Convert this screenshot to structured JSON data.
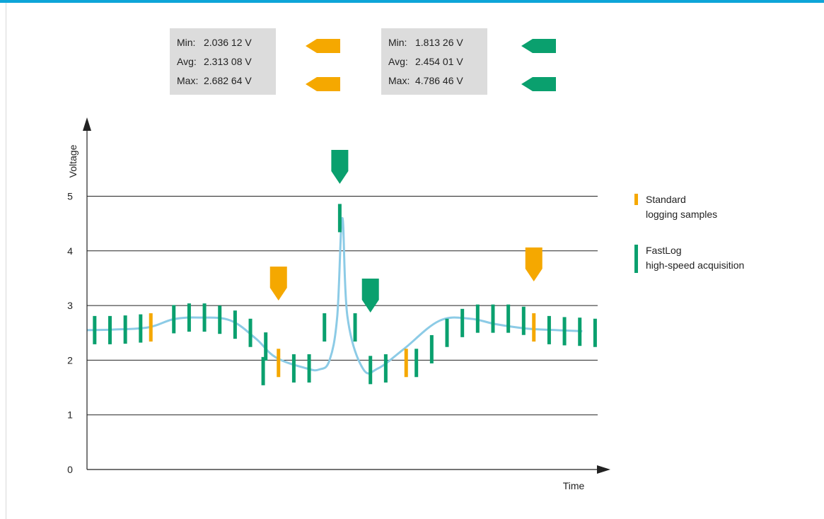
{
  "colors": {
    "standard": "#f5a800",
    "fastlog": "#0aa06e",
    "curve": "#8ccbe6",
    "top_bar": "#0ea5d8",
    "stat_bg": "#dcdcdc"
  },
  "stats": {
    "standard": {
      "min_label": "Min:",
      "min": "2.036 12 V",
      "avg_label": "Avg:",
      "avg": "2.313 08 V",
      "max_label": "Max:",
      "max": "2.682 64 V"
    },
    "fastlog": {
      "min_label": "Min:",
      "min": "1.813 26 V",
      "avg_label": "Avg:",
      "avg": "2.454 01 V",
      "max_label": "Max:",
      "max": "4.786 46 V"
    }
  },
  "legend": {
    "standard_line1": "Standard",
    "standard_line2": "logging samples",
    "fastlog_line1": "FastLog",
    "fastlog_line2": "high-speed acquisition"
  },
  "chart_data": {
    "type": "line",
    "xlabel": "Time",
    "ylabel": "Voltage",
    "ylim": [
      0,
      5.8
    ],
    "xlim": [
      0,
      1
    ],
    "yticks": [
      "0",
      "1",
      "2",
      "3",
      "4",
      "5"
    ],
    "grid": "horizontal",
    "legend_position": "right",
    "series": [
      {
        "x": [
          0.0,
          0.05,
          0.12,
          0.17,
          0.22,
          0.28,
          0.33,
          0.37,
          0.43,
          0.455,
          0.475,
          0.49,
          0.5,
          0.51,
          0.54,
          0.57,
          0.62,
          0.69,
          0.75,
          0.8,
          0.86,
          0.92,
          0.97
        ],
        "values": [
          2.55,
          2.56,
          2.6,
          2.75,
          2.78,
          2.73,
          2.4,
          2.05,
          1.85,
          1.83,
          2.0,
          2.8,
          4.6,
          2.8,
          1.85,
          1.85,
          2.2,
          2.72,
          2.76,
          2.66,
          2.58,
          2.55,
          2.53
        ]
      },
      {
        "name": "Standard",
        "type": "samples",
        "x": [
          0.125,
          0.375,
          0.625,
          0.875
        ],
        "values": [
          2.6,
          1.95,
          1.95,
          2.6
        ]
      },
      {
        "name": "FastLog",
        "type": "samples",
        "x": [
          0.015,
          0.045,
          0.075,
          0.105,
          0.17,
          0.2,
          0.23,
          0.26,
          0.29,
          0.32,
          0.35,
          0.345,
          0.405,
          0.435,
          0.465,
          0.495,
          0.525,
          0.555,
          0.585,
          0.645,
          0.675,
          0.705,
          0.735,
          0.765,
          0.795,
          0.825,
          0.855,
          0.905,
          0.935,
          0.965,
          0.995
        ],
        "values": [
          2.55,
          2.55,
          2.56,
          2.58,
          2.75,
          2.78,
          2.78,
          2.74,
          2.65,
          2.5,
          2.25,
          1.8,
          1.85,
          1.85,
          2.6,
          4.6,
          2.6,
          1.82,
          1.85,
          1.95,
          2.2,
          2.5,
          2.68,
          2.76,
          2.76,
          2.76,
          2.72,
          2.55,
          2.53,
          2.52,
          2.5
        ]
      }
    ],
    "markers": [
      {
        "series": "Standard",
        "kind": "min",
        "x": 0.375
      },
      {
        "series": "Standard",
        "kind": "max",
        "x": 0.875
      },
      {
        "series": "FastLog",
        "kind": "min",
        "x": 0.555
      },
      {
        "series": "FastLog",
        "kind": "max",
        "x": 0.495
      }
    ]
  }
}
